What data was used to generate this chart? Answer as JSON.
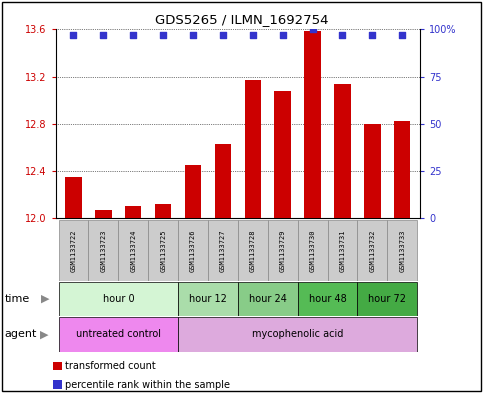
{
  "title": "GDS5265 / ILMN_1692754",
  "samples": [
    "GSM1133722",
    "GSM1133723",
    "GSM1133724",
    "GSM1133725",
    "GSM1133726",
    "GSM1133727",
    "GSM1133728",
    "GSM1133729",
    "GSM1133730",
    "GSM1133731",
    "GSM1133732",
    "GSM1133733"
  ],
  "bar_values": [
    12.35,
    12.07,
    12.1,
    12.12,
    12.45,
    12.63,
    13.17,
    13.08,
    13.59,
    13.14,
    12.8,
    12.82
  ],
  "percentile_values": [
    97,
    97,
    97,
    97,
    97,
    97,
    97,
    97,
    100,
    97,
    97,
    97
  ],
  "ylim_left": [
    12.0,
    13.6
  ],
  "ylim_right": [
    0,
    100
  ],
  "yticks_left": [
    12.0,
    12.4,
    12.8,
    13.2,
    13.6
  ],
  "yticks_right": [
    0,
    25,
    50,
    75,
    100
  ],
  "bar_color": "#cc0000",
  "dot_color": "#3333cc",
  "time_groups": [
    {
      "label": "hour 0",
      "start": 0,
      "end": 4,
      "color": "#d4f5d4"
    },
    {
      "label": "hour 12",
      "start": 4,
      "end": 6,
      "color": "#aaddaa"
    },
    {
      "label": "hour 24",
      "start": 6,
      "end": 8,
      "color": "#88cc88"
    },
    {
      "label": "hour 48",
      "start": 8,
      "end": 10,
      "color": "#55bb55"
    },
    {
      "label": "hour 72",
      "start": 10,
      "end": 12,
      "color": "#44aa44"
    }
  ],
  "agent_groups": [
    {
      "label": "untreated control",
      "start": 0,
      "end": 4,
      "color": "#ee88ee"
    },
    {
      "label": "mycophenolic acid",
      "start": 4,
      "end": 12,
      "color": "#ddaadd"
    }
  ],
  "legend_items": [
    {
      "label": "transformed count",
      "color": "#cc0000"
    },
    {
      "label": "percentile rank within the sample",
      "color": "#3333cc"
    }
  ],
  "bg_color": "#ffffff",
  "sample_box_color": "#cccccc",
  "sample_box_edge": "#888888"
}
